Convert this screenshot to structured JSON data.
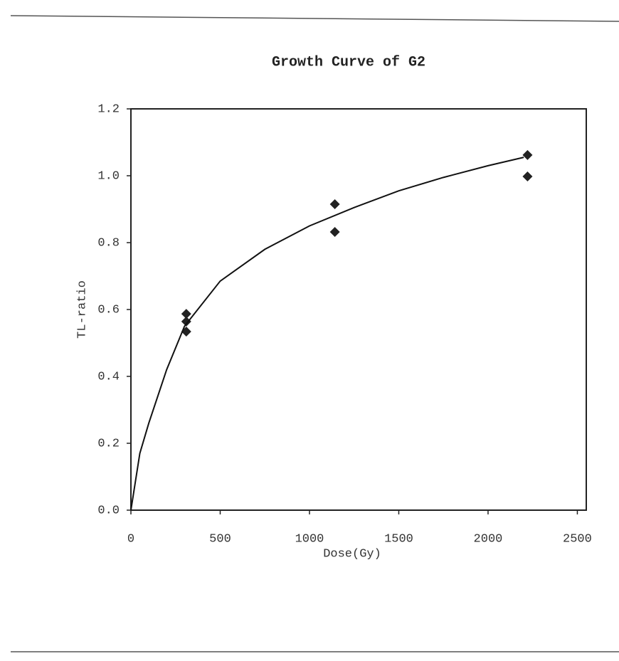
{
  "chart_data": {
    "type": "scatter",
    "title": "Growth Curve of G2",
    "x_label": "Dose(Gy)",
    "y_label": "TL-ratio",
    "xlim": [
      0,
      2550
    ],
    "ylim": [
      0,
      1.2
    ],
    "xticks": [
      0,
      500,
      1000,
      1500,
      2000,
      2500
    ],
    "yticks": [
      {
        "value": 0,
        "label": "0.0"
      },
      {
        "value": 0.2,
        "label": "0.2"
      },
      {
        "value": 0.4,
        "label": "0.4"
      },
      {
        "value": 0.6,
        "label": "0.6"
      },
      {
        "value": 0.8,
        "label": "0.8"
      },
      {
        "value": 1,
        "label": "1.0"
      },
      {
        "value": 1.2,
        "label": "1.2"
      }
    ],
    "series": [
      {
        "mode": "markers",
        "color": "#222222",
        "x": [
          310,
          310,
          310,
          1142,
          1142,
          2221,
          2221
        ],
        "values": [
          0.587,
          0.564,
          0.534,
          0.915,
          0.832,
          1.062,
          0.998
        ]
      },
      {
        "mode": "line",
        "color": "#111111",
        "x": [
          0,
          50,
          100,
          200,
          300,
          500,
          750,
          1000,
          1250,
          1500,
          1750,
          2000,
          2200
        ],
        "values": [
          0,
          0.17,
          0.26,
          0.42,
          0.55,
          0.685,
          0.78,
          0.85,
          0.905,
          0.955,
          0.995,
          1.03,
          1.055
        ]
      }
    ]
  }
}
